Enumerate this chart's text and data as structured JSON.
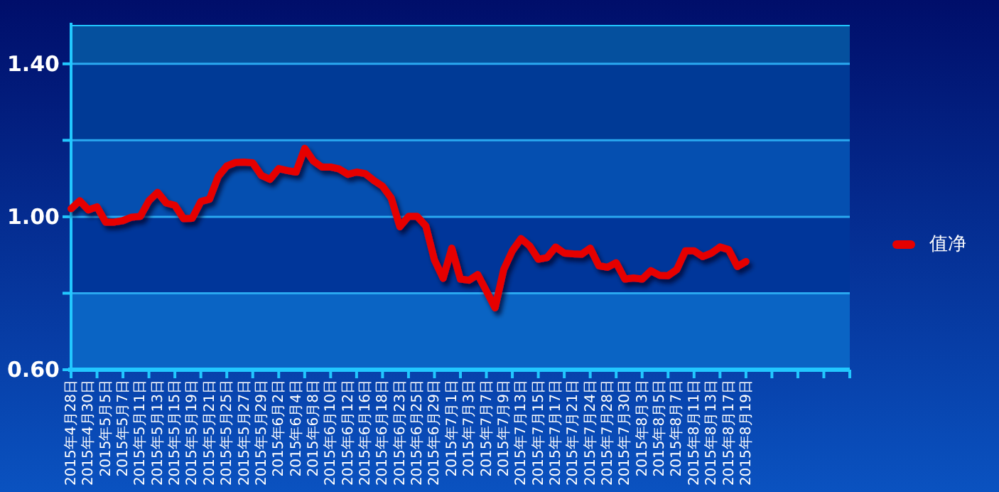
{
  "chart_data": {
    "type": "line",
    "categories": [
      "2015年4月28日",
      null,
      "2015年4月30日",
      null,
      "2015年5月5日",
      null,
      "2015年5月7日",
      null,
      "2015年5月11日",
      null,
      "2015年5月13日",
      null,
      "2015年5月15日",
      null,
      "2015年5月19日",
      null,
      "2015年5月21日",
      null,
      "2015年5月25日",
      null,
      "2015年5月27日",
      null,
      "2015年5月29日",
      null,
      "2015年6月2日",
      null,
      "2015年6月4日",
      null,
      "2015年6月8日",
      null,
      "2015年6月10日",
      null,
      "2015年6月12日",
      null,
      "2015年6月16日",
      null,
      "2015年6月18日",
      null,
      "2015年6月23日",
      null,
      "2015年6月25日",
      null,
      "2015年6月29日",
      null,
      "2015年7月1日",
      null,
      "2015年7月3日",
      null,
      "2015年7月7日",
      null,
      "2015年7月9日",
      null,
      "2015年7月13日",
      null,
      "2015年7月15日",
      null,
      "2015年7月17日",
      null,
      "2015年7月21日",
      null,
      "2015年7月24日",
      null,
      "2015年7月28日",
      null,
      "2015年7月30日",
      null,
      "2015年8月3日",
      null,
      "2015年8月5日",
      null,
      "2015年8月7日",
      null,
      "2015年8月11日",
      null,
      "2015年8月13日",
      null,
      "2015年8月17日",
      null,
      "2015年8月19日",
      null,
      null,
      null,
      null,
      null,
      null,
      null,
      null,
      null,
      null,
      null,
      null
    ],
    "series": [
      {
        "name": "值净",
        "color": "#e60000",
        "values": [
          1.021,
          1.042,
          1.018,
          1.026,
          0.986,
          0.986,
          0.99,
          0.999,
          1.001,
          1.042,
          1.064,
          1.036,
          1.03,
          0.995,
          0.996,
          1.04,
          1.046,
          1.105,
          1.133,
          1.142,
          1.143,
          1.141,
          1.108,
          1.098,
          1.126,
          1.121,
          1.117,
          1.179,
          1.146,
          1.13,
          1.13,
          1.125,
          1.111,
          1.117,
          1.113,
          1.095,
          1.08,
          1.049,
          0.974,
          1.001,
          1.001,
          0.976,
          0.887,
          0.839,
          0.918,
          0.837,
          0.834,
          0.849,
          0.806,
          0.762,
          0.862,
          0.911,
          0.943,
          0.924,
          0.889,
          0.893,
          0.921,
          0.905,
          0.903,
          0.902,
          0.918,
          0.872,
          0.868,
          0.88,
          0.837,
          0.84,
          0.837,
          0.859,
          0.847,
          0.846,
          0.862,
          0.911,
          0.911,
          0.896,
          0.905,
          0.921,
          0.914,
          0.87,
          0.883,
          null,
          null,
          null,
          null,
          null,
          null,
          null,
          null,
          null,
          null,
          null,
          null
        ]
      }
    ],
    "ylim": [
      0.6,
      1.5
    ],
    "yticks": [
      {
        "value": 0.6,
        "label": "0.60"
      },
      {
        "value": 0.8,
        "label": null
      },
      {
        "value": 1.0,
        "label": "1.00"
      },
      {
        "value": 1.2,
        "label": null
      },
      {
        "value": 1.4,
        "label": "1.40"
      }
    ],
    "grid": "y",
    "legend": "right"
  }
}
